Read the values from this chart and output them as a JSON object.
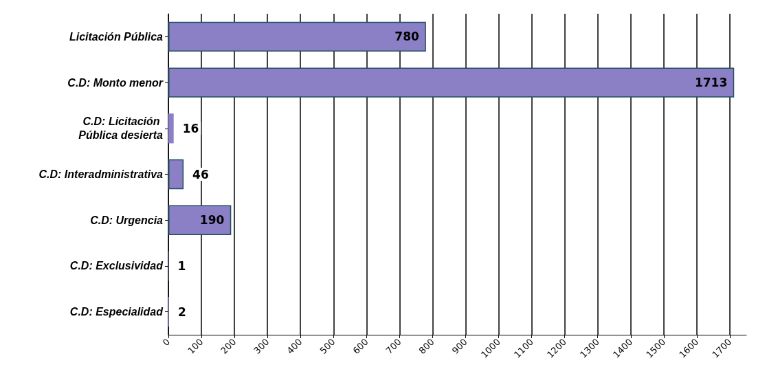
{
  "chart_data": {
    "type": "bar",
    "orientation": "horizontal",
    "categories": [
      "Licitación Pública",
      "C.D: Monto menor",
      "C.D: Licitación Pública desierta",
      "C.D: Interadministrativa",
      "C.D: Urgencia",
      "C.D: Exclusividad",
      "C.D: Especialidad"
    ],
    "values": [
      780,
      1713,
      16,
      46,
      190,
      1,
      2
    ],
    "color": "#8b7fc6",
    "xlim": [
      0,
      1750
    ],
    "xticks": [
      0,
      100,
      200,
      300,
      400,
      500,
      600,
      700,
      800,
      900,
      1000,
      1100,
      1200,
      1300,
      1400,
      1500,
      1600,
      1700
    ],
    "grid": "x",
    "data_labels": true
  }
}
